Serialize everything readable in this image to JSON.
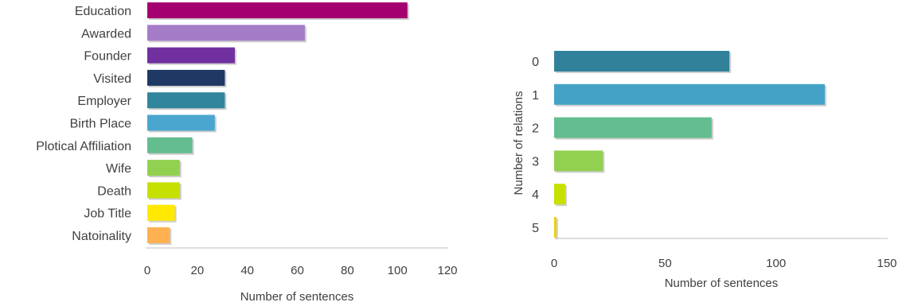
{
  "chart_data": [
    {
      "type": "bar",
      "orientation": "horizontal",
      "categories": [
        "Education",
        "Awarded",
        "Founder",
        "Visited",
        "Employer",
        "Birth Place",
        "Plotical Affiliation",
        "Wife",
        "Death",
        "Job Title",
        "Natoinality"
      ],
      "values": [
        104,
        63,
        35,
        31,
        31,
        27,
        18,
        13,
        13,
        11,
        9
      ],
      "colors": [
        "#a50070",
        "#a57cc8",
        "#7030a0",
        "#1f3864",
        "#31859c",
        "#4aa6cf",
        "#63bd8f",
        "#92d050",
        "#c6e000",
        "#ffe900",
        "#ffb050"
      ],
      "title": "",
      "xlabel": "Number of sentences",
      "ylabel": "",
      "xlim": [
        0,
        120
      ],
      "xticks": [
        0,
        20,
        40,
        60,
        80,
        100,
        120
      ],
      "grid": false,
      "legend": "none"
    },
    {
      "type": "bar",
      "orientation": "horizontal",
      "categories": [
        "0",
        "1",
        "2",
        "3",
        "4",
        "5"
      ],
      "values": [
        79,
        122,
        71,
        22,
        5,
        1
      ],
      "colors": [
        "#31819a",
        "#44a2c6",
        "#63bd8f",
        "#92d050",
        "#c6e000",
        "#f0d000"
      ],
      "title": "",
      "xlabel": "Number of sentences",
      "ylabel": "Number of relations",
      "xlim": [
        0,
        150
      ],
      "xticks": [
        0,
        50,
        100,
        150
      ],
      "grid": false,
      "legend": "none"
    }
  ]
}
